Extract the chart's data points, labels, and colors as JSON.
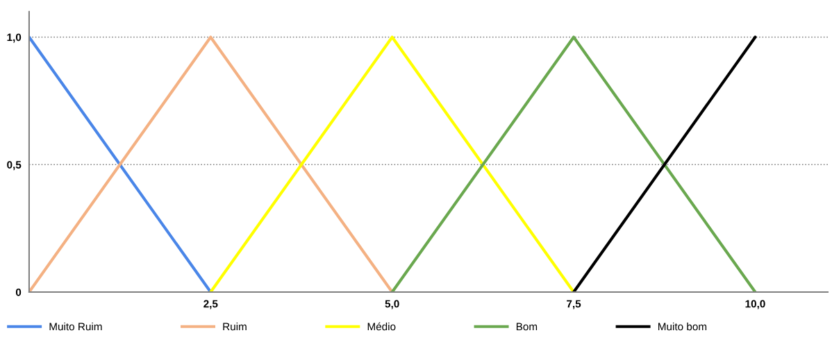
{
  "chart_data": {
    "type": "line",
    "series": [
      {
        "name": "Muito Ruim",
        "color": "#4a86e8",
        "x": [
          0,
          2.5
        ],
        "values": [
          1,
          0
        ]
      },
      {
        "name": "Ruim",
        "color": "#f4b183",
        "x": [
          0,
          2.5,
          5.0
        ],
        "values": [
          0,
          1,
          0
        ]
      },
      {
        "name": "Médio",
        "color": "#ffff00",
        "x": [
          2.5,
          5.0,
          7.5
        ],
        "values": [
          0,
          1,
          0
        ]
      },
      {
        "name": "Bom",
        "color": "#6aa84f",
        "x": [
          5.0,
          7.5,
          10.0
        ],
        "values": [
          0,
          1,
          0
        ]
      },
      {
        "name": "Muito bom",
        "color": "#000000",
        "x": [
          7.5,
          10.0
        ],
        "values": [
          0,
          1
        ]
      }
    ],
    "xlim": [
      0,
      11.0
    ],
    "ylim": [
      0,
      1.1
    ],
    "xticks": [
      {
        "value": 2.5,
        "label": "2,5"
      },
      {
        "value": 5.0,
        "label": "5,0"
      },
      {
        "value": 7.5,
        "label": "7,5"
      },
      {
        "value": 10.0,
        "label": "10,0"
      }
    ],
    "yticks": [
      {
        "value": 0,
        "label": "0"
      },
      {
        "value": 0.5,
        "label": "0,5"
      },
      {
        "value": 1.0,
        "label": "1,0"
      }
    ],
    "grid": "y",
    "legend": "bottom",
    "marker": "none",
    "line_style": "solid"
  }
}
